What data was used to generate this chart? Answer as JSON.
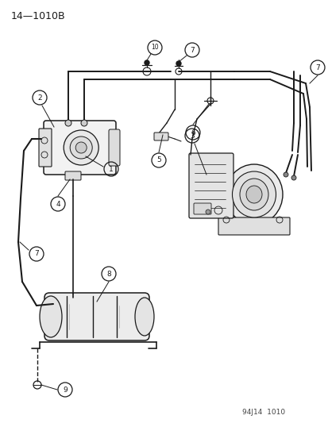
{
  "title": "14—1010B",
  "footer": "94J14  1010",
  "bg_color": "#ffffff",
  "line_color": "#1a1a1a",
  "figsize": [
    4.14,
    5.33
  ],
  "dpi": 100
}
